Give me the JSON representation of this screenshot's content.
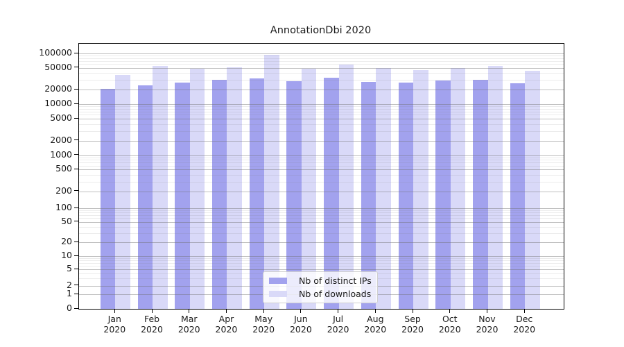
{
  "title": "AnnotationDbi 2020",
  "chart_data": {
    "type": "bar",
    "title": "AnnotationDbi 2020",
    "categories": [
      "Jan 2020",
      "Feb 2020",
      "Mar 2020",
      "Apr 2020",
      "May 2020",
      "Jun 2020",
      "Jul 2020",
      "Aug 2020",
      "Sep 2020",
      "Oct 2020",
      "Nov 2020",
      "Dec 2020"
    ],
    "series": [
      {
        "name": "Nb of distinct IPs",
        "color": "#a2a2ee",
        "values": [
          20500,
          23500,
          26700,
          29700,
          31800,
          28000,
          32400,
          27800,
          26500,
          28900,
          30100,
          26200
        ]
      },
      {
        "name": "Nb of downloads",
        "color": "#d9d9f8",
        "values": [
          36800,
          54000,
          47500,
          51000,
          92500,
          48000,
          58500,
          48600,
          45500,
          49000,
          55300,
          44000
        ]
      }
    ],
    "xlabel": "",
    "ylabel": "",
    "yscale": "symlog",
    "ylim": [
      0,
      155000
    ],
    "yticks": [
      0,
      1,
      2,
      5,
      10,
      20,
      50,
      100,
      200,
      500,
      1000,
      2000,
      5000,
      10000,
      20000,
      50000,
      100000
    ],
    "ytick_labels": [
      "0",
      "1",
      "2",
      "5",
      "10",
      "20",
      "50",
      "100",
      "200",
      "500",
      "1000",
      "2000",
      "5000",
      "10000",
      "20000",
      "50000",
      "100000"
    ],
    "grid": "major+minor horizontal",
    "legend_position": "lower center"
  }
}
